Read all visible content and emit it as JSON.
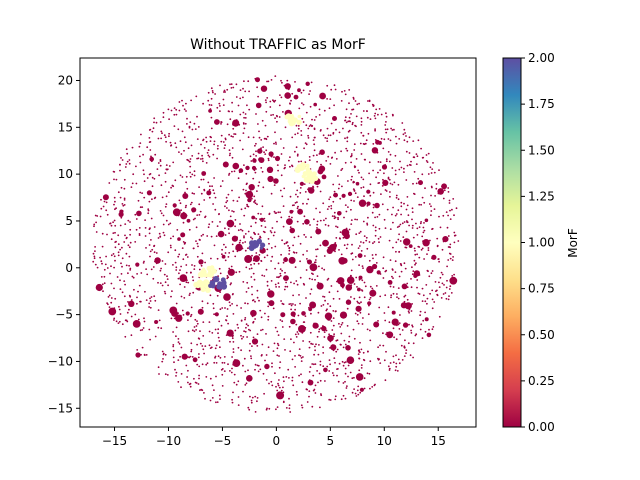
{
  "chart_data": {
    "type": "scatter",
    "title": "Without TRAFFIC as MorF",
    "xlabel": "",
    "ylabel": "",
    "xlim": [
      -18.2,
      18.5
    ],
    "ylim": [
      -17.0,
      22.4
    ],
    "xticks": [
      -15,
      -10,
      -5,
      0,
      5,
      10,
      15
    ],
    "yticks": [
      -15,
      -10,
      -5,
      0,
      5,
      10,
      15,
      20
    ],
    "grid": false,
    "legend": "none",
    "colorbar": {
      "label": "MorF",
      "range": [
        0.0,
        2.0
      ],
      "ticks": [
        "0.00",
        "0.25",
        "0.50",
        "0.75",
        "1.00",
        "1.25",
        "1.50",
        "1.75",
        "2.00"
      ],
      "colormap": "Spectral",
      "stops": [
        "#9e0142",
        "#d53e4f",
        "#f46d43",
        "#fdae61",
        "#fee08b",
        "#ffffbf",
        "#e6f598",
        "#abdda4",
        "#66c2a5",
        "#3288bd",
        "#5e4fa2"
      ]
    },
    "point_cloud": {
      "description": "scattered particles inside a roughly circular region",
      "center": [
        0.0,
        2.5
      ],
      "radius": 18.0,
      "default_value": 0.0
    },
    "clusters": [
      {
        "x": 1.5,
        "y": 15.8,
        "value": 1.0
      },
      {
        "x": 2.4,
        "y": 10.6,
        "value": 1.0
      },
      {
        "x": 3.0,
        "y": 9.7,
        "value": 1.0
      },
      {
        "x": -1.8,
        "y": 2.4,
        "value": 2.0
      },
      {
        "x": -6.4,
        "y": -0.4,
        "value": 1.0
      },
      {
        "x": -6.8,
        "y": -2.0,
        "value": 1.0
      },
      {
        "x": -5.5,
        "y": -1.6,
        "value": 2.0
      }
    ]
  }
}
